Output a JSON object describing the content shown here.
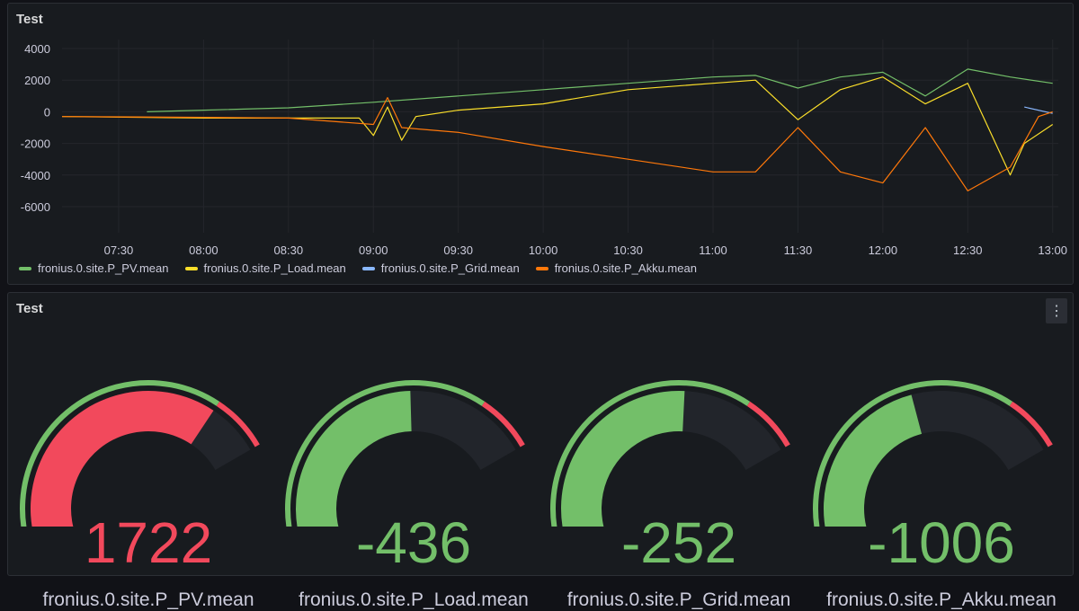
{
  "timeseries_panel": {
    "title": "Test",
    "y_ticks": [
      "4000",
      "2000",
      "0",
      "-2000",
      "-4000",
      "-6000"
    ],
    "x_ticks": [
      "07:30",
      "08:00",
      "08:30",
      "09:00",
      "09:30",
      "10:00",
      "10:30",
      "11:00",
      "11:30",
      "12:00",
      "12:30",
      "13:00"
    ],
    "legend": [
      {
        "label": "fronius.0.site.P_PV.mean",
        "color": "#73bf69"
      },
      {
        "label": "fronius.0.site.P_Load.mean",
        "color": "#fade2a"
      },
      {
        "label": "fronius.0.site.P_Grid.mean",
        "color": "#8ab8ff"
      },
      {
        "label": "fronius.0.site.P_Akku.mean",
        "color": "#ff780a"
      }
    ]
  },
  "gauge_panel": {
    "title": "Test",
    "menu_icon": "kebab-menu-icon",
    "gauges": [
      {
        "label": "fronius.0.site.P_PV.mean",
        "value": "1722",
        "fraction": 0.88,
        "color": "#f2495c"
      },
      {
        "label": "fronius.0.site.P_Load.mean",
        "value": "-436",
        "fraction": 0.72,
        "color": "#73bf69"
      },
      {
        "label": "fronius.0.site.P_Grid.mean",
        "value": "-252",
        "fraction": 0.74,
        "color": "#73bf69"
      },
      {
        "label": "fronius.0.site.P_Akku.mean",
        "value": "-1006",
        "fraction": 0.66,
        "color": "#73bf69"
      }
    ]
  },
  "chart_data": {
    "type": "line",
    "x_range": [
      "07:10",
      "13:02"
    ],
    "ylim": [
      -7000,
      4500
    ],
    "grid": true,
    "legend_position": "bottom-left",
    "series": [
      {
        "name": "fronius.0.site.P_PV.mean",
        "color": "#73bf69",
        "points": [
          [
            "07:40",
            0
          ],
          [
            "08:00",
            100
          ],
          [
            "08:30",
            250
          ],
          [
            "09:00",
            600
          ],
          [
            "09:30",
            1000
          ],
          [
            "10:00",
            1400
          ],
          [
            "10:30",
            1800
          ],
          [
            "11:00",
            2200
          ],
          [
            "11:15",
            2300
          ],
          [
            "11:30",
            1500
          ],
          [
            "11:45",
            2200
          ],
          [
            "12:00",
            2500
          ],
          [
            "12:15",
            1000
          ],
          [
            "12:30",
            2700
          ],
          [
            "12:45",
            2200
          ],
          [
            "13:00",
            1800
          ]
        ]
      },
      {
        "name": "fronius.0.site.P_Load.mean",
        "color": "#fade2a",
        "points": [
          [
            "07:10",
            -300
          ],
          [
            "07:40",
            -350
          ],
          [
            "08:00",
            -400
          ],
          [
            "08:30",
            -400
          ],
          [
            "08:55",
            -400
          ],
          [
            "09:00",
            -1500
          ],
          [
            "09:05",
            300
          ],
          [
            "09:10",
            -1800
          ],
          [
            "09:15",
            -300
          ],
          [
            "09:30",
            100
          ],
          [
            "10:00",
            500
          ],
          [
            "10:30",
            1400
          ],
          [
            "11:00",
            1800
          ],
          [
            "11:15",
            2000
          ],
          [
            "11:30",
            -500
          ],
          [
            "11:45",
            1400
          ],
          [
            "12:00",
            2200
          ],
          [
            "12:15",
            500
          ],
          [
            "12:30",
            1800
          ],
          [
            "12:45",
            -4000
          ],
          [
            "12:50",
            -2000
          ],
          [
            "13:00",
            -800
          ]
        ]
      },
      {
        "name": "fronius.0.site.P_Grid.mean",
        "color": "#8ab8ff",
        "points": [
          [
            "12:50",
            300
          ],
          [
            "13:00",
            -100
          ]
        ]
      },
      {
        "name": "fronius.0.site.P_Akku.mean",
        "color": "#ff780a",
        "points": [
          [
            "07:10",
            -300
          ],
          [
            "08:00",
            -350
          ],
          [
            "08:30",
            -400
          ],
          [
            "09:00",
            -800
          ],
          [
            "09:05",
            900
          ],
          [
            "09:10",
            -1000
          ],
          [
            "09:30",
            -1300
          ],
          [
            "10:00",
            -2200
          ],
          [
            "10:30",
            -3000
          ],
          [
            "11:00",
            -3800
          ],
          [
            "11:15",
            -3800
          ],
          [
            "11:30",
            -1000
          ],
          [
            "11:45",
            -3800
          ],
          [
            "12:00",
            -4500
          ],
          [
            "12:15",
            -1000
          ],
          [
            "12:30",
            -5000
          ],
          [
            "12:45",
            -3500
          ],
          [
            "12:55",
            -300
          ],
          [
            "13:00",
            0
          ]
        ]
      }
    ]
  }
}
